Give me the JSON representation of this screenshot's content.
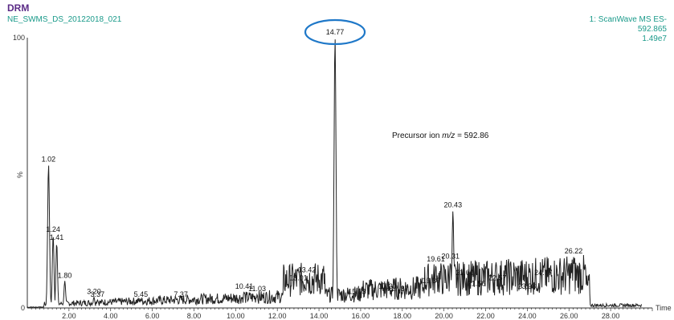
{
  "header": {
    "title": "DRM",
    "sample": "NE_SWMS_DS_20122018_021",
    "function": "1: ScanWave MS ES-",
    "mass": "592.865",
    "intensity": "1.49e7"
  },
  "chart_data": {
    "type": "line",
    "xlabel": "Time",
    "ylabel": "%",
    "xlim": [
      0,
      30
    ],
    "ylim": [
      0,
      100
    ],
    "x_ticks": [
      2,
      4,
      6,
      8,
      10,
      12,
      14,
      16,
      18,
      20,
      22,
      24,
      26,
      28
    ],
    "x_tick_labels": [
      "2.00",
      "4.00",
      "6.00",
      "8.00",
      "10.00",
      "12.00",
      "14.00",
      "16.00",
      "18.00",
      "20.00",
      "22.00",
      "24.00",
      "26.00",
      "28.00"
    ],
    "y_tick_labels": [
      "100",
      "0"
    ],
    "peaks": [
      {
        "label": "1.02",
        "x": 1.02,
        "y": 53
      },
      {
        "label": "1.24",
        "x": 1.24,
        "y": 27
      },
      {
        "label": "1.41",
        "x": 1.41,
        "y": 24
      },
      {
        "label": "1.80",
        "x": 1.8,
        "y": 10
      },
      {
        "label": "3.20",
        "x": 3.2,
        "y": 4
      },
      {
        "label": "3.37",
        "x": 3.37,
        "y": 3
      },
      {
        "label": "5.45",
        "x": 5.45,
        "y": 3
      },
      {
        "label": "7.37",
        "x": 7.37,
        "y": 3
      },
      {
        "label": "10.41",
        "x": 10.41,
        "y": 6
      },
      {
        "label": "11.03",
        "x": 11.03,
        "y": 5
      },
      {
        "label": "13.01",
        "x": 13.01,
        "y": 9
      },
      {
        "label": "13.42",
        "x": 13.42,
        "y": 12
      },
      {
        "label": "14.77",
        "x": 14.77,
        "y": 100
      },
      {
        "label": "15.83",
        "x": 15.83,
        "y": 4
      },
      {
        "label": "17.30",
        "x": 17.3,
        "y": 6
      },
      {
        "label": "17.87",
        "x": 17.87,
        "y": 5
      },
      {
        "label": "19.39",
        "x": 19.39,
        "y": 8
      },
      {
        "label": "19.61",
        "x": 19.61,
        "y": 16
      },
      {
        "label": "20.31",
        "x": 20.31,
        "y": 17
      },
      {
        "label": "20.43",
        "x": 20.43,
        "y": 36
      },
      {
        "label": "21.00",
        "x": 21.0,
        "y": 11
      },
      {
        "label": "21.56",
        "x": 21.56,
        "y": 7
      },
      {
        "label": "22.57",
        "x": 22.57,
        "y": 9
      },
      {
        "label": "23.98",
        "x": 23.98,
        "y": 6
      },
      {
        "label": "24.77",
        "x": 24.77,
        "y": 11
      },
      {
        "label": "26.22",
        "x": 26.22,
        "y": 19
      }
    ],
    "annotation": {
      "prefix": "Precursor ion ",
      "italic": "m/z",
      "suffix": " = 592.86"
    },
    "highlighted_peak": "14.77",
    "colors": {
      "trace": "#222222",
      "highlight": "#1f78c8",
      "title": "#5a2a86",
      "header": "#1a9a8a"
    }
  }
}
